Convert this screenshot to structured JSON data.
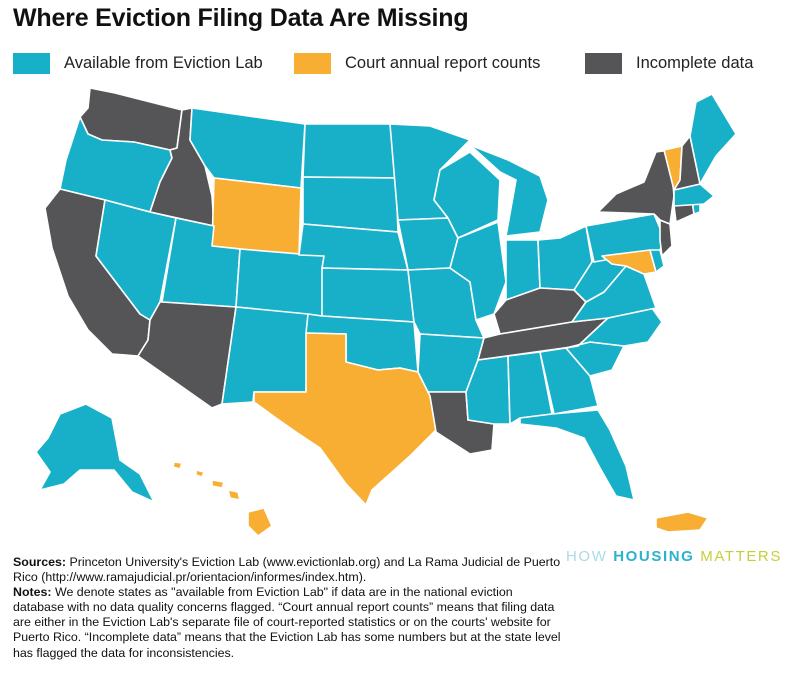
{
  "title": "Where Eviction Filing Data Are Missing",
  "legend": [
    {
      "label": "Available from Eviction Lab",
      "color": "#17b0c8"
    },
    {
      "label": "Court annual report counts",
      "color": "#f7ae32"
    },
    {
      "label": "Incomplete data",
      "color": "#555557"
    }
  ],
  "colors": {
    "available": "#17b0c8",
    "court": "#f7ae32",
    "incomplete": "#555557"
  },
  "map": {
    "states": [
      {
        "id": "WA",
        "cat": "incomplete"
      },
      {
        "id": "OR",
        "cat": "available"
      },
      {
        "id": "CA",
        "cat": "incomplete"
      },
      {
        "id": "ID",
        "cat": "incomplete"
      },
      {
        "id": "NV",
        "cat": "available"
      },
      {
        "id": "MT",
        "cat": "available"
      },
      {
        "id": "WY",
        "cat": "court"
      },
      {
        "id": "UT",
        "cat": "available"
      },
      {
        "id": "AZ",
        "cat": "incomplete"
      },
      {
        "id": "CO",
        "cat": "available"
      },
      {
        "id": "NM",
        "cat": "available"
      },
      {
        "id": "ND",
        "cat": "available"
      },
      {
        "id": "SD",
        "cat": "available"
      },
      {
        "id": "NE",
        "cat": "available"
      },
      {
        "id": "KS",
        "cat": "available"
      },
      {
        "id": "OK",
        "cat": "available"
      },
      {
        "id": "TX",
        "cat": "court"
      },
      {
        "id": "MN",
        "cat": "available"
      },
      {
        "id": "IA",
        "cat": "available"
      },
      {
        "id": "MO",
        "cat": "available"
      },
      {
        "id": "AR",
        "cat": "available"
      },
      {
        "id": "LA",
        "cat": "incomplete"
      },
      {
        "id": "WI",
        "cat": "available"
      },
      {
        "id": "IL",
        "cat": "available"
      },
      {
        "id": "MI",
        "cat": "available"
      },
      {
        "id": "IN",
        "cat": "available"
      },
      {
        "id": "OH",
        "cat": "available"
      },
      {
        "id": "KY",
        "cat": "incomplete"
      },
      {
        "id": "TN",
        "cat": "incomplete"
      },
      {
        "id": "MS",
        "cat": "available"
      },
      {
        "id": "AL",
        "cat": "available"
      },
      {
        "id": "GA",
        "cat": "available"
      },
      {
        "id": "FL",
        "cat": "available"
      },
      {
        "id": "SC",
        "cat": "available"
      },
      {
        "id": "NC",
        "cat": "available"
      },
      {
        "id": "VA",
        "cat": "available"
      },
      {
        "id": "WV",
        "cat": "available"
      },
      {
        "id": "PA",
        "cat": "available"
      },
      {
        "id": "NY",
        "cat": "incomplete"
      },
      {
        "id": "NJ",
        "cat": "incomplete"
      },
      {
        "id": "DE",
        "cat": "available"
      },
      {
        "id": "MD",
        "cat": "court"
      },
      {
        "id": "VT",
        "cat": "court"
      },
      {
        "id": "NH",
        "cat": "incomplete"
      },
      {
        "id": "ME",
        "cat": "available"
      },
      {
        "id": "MA",
        "cat": "available"
      },
      {
        "id": "CT",
        "cat": "incomplete"
      },
      {
        "id": "RI",
        "cat": "available"
      },
      {
        "id": "AK",
        "cat": "available"
      },
      {
        "id": "HI",
        "cat": "court"
      },
      {
        "id": "PR",
        "cat": "court"
      }
    ]
  },
  "brand": {
    "part1": "HOW ",
    "part2": "HOUSING",
    "part3": " MATTERS"
  },
  "notes": {
    "sources_label": "Sources:",
    "sources_text": " Princeton University's Eviction Lab (www.evictionlab.org) and La Rama Judicial de Puerto Rico (http://www.ramajudicial.pr/orientacion/informes/index.htm).",
    "notes_label": "Notes:",
    "notes_text": " We denote states as \"available from Eviction Lab\" if data are in the national eviction database with no data quality concerns flagged. “Court annual report counts” means that filing data are either in the Eviction Lab's separate file of court-reported statistics or on the courts' website for Puerto Rico. “Incomplete data” means that the Eviction Lab has some numbers but at the state level has flagged the data for inconsistencies."
  }
}
